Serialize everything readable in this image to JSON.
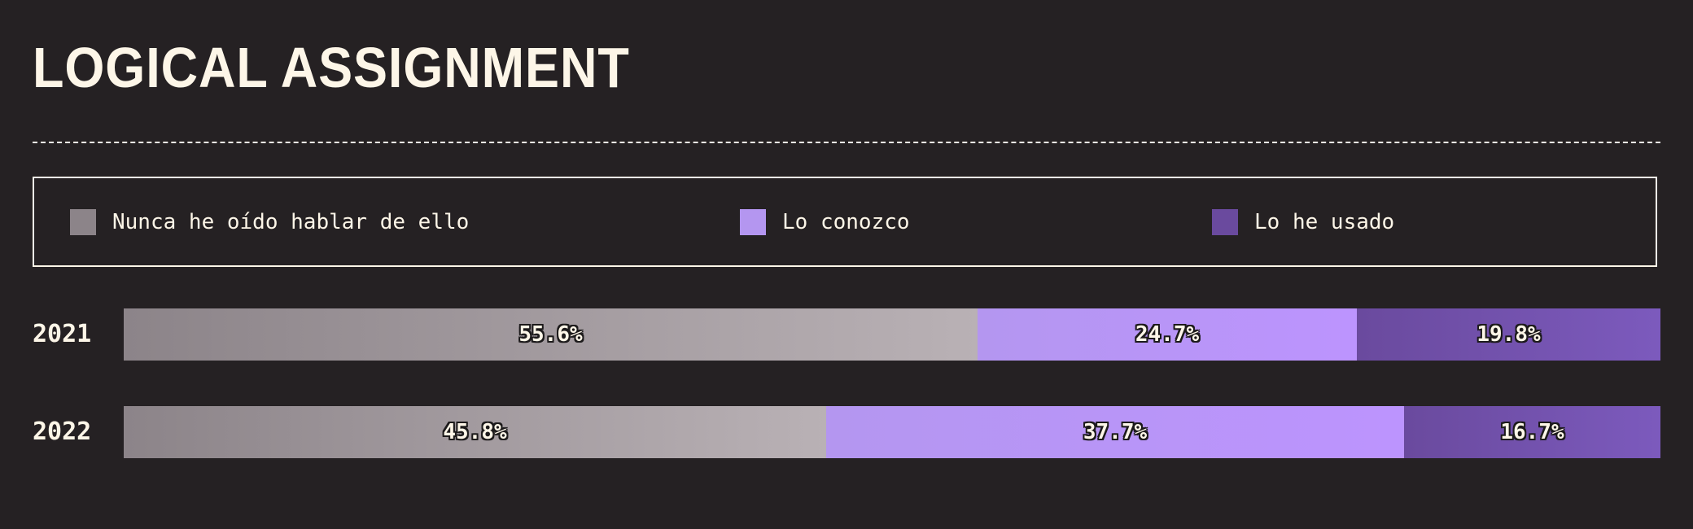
{
  "chart_data": {
    "type": "bar",
    "orientation": "horizontal",
    "stacked": true,
    "title": "LOGICAL ASSIGNMENT",
    "categories": [
      "2021",
      "2022"
    ],
    "series": [
      {
        "name": "Nunca he oído hablar de ello",
        "values": [
          55.6,
          45.8
        ],
        "labels": [
          "55.6%",
          "45.8%"
        ],
        "color_start": "#8c8489",
        "color_end": "#b9b1b5"
      },
      {
        "name": "Lo conozco",
        "values": [
          24.7,
          37.7
        ],
        "labels": [
          "24.7%",
          "37.7%"
        ],
        "color_start": "#b496f0",
        "color_end": "#bc94fe"
      },
      {
        "name": "Lo he usado",
        "values": [
          19.8,
          16.7
        ],
        "labels": [
          "19.8%",
          "16.7%"
        ],
        "color_start": "#6a4a9e",
        "color_end": "#7c5abd"
      }
    ],
    "xlim": [
      0,
      100
    ],
    "legend": "top"
  }
}
